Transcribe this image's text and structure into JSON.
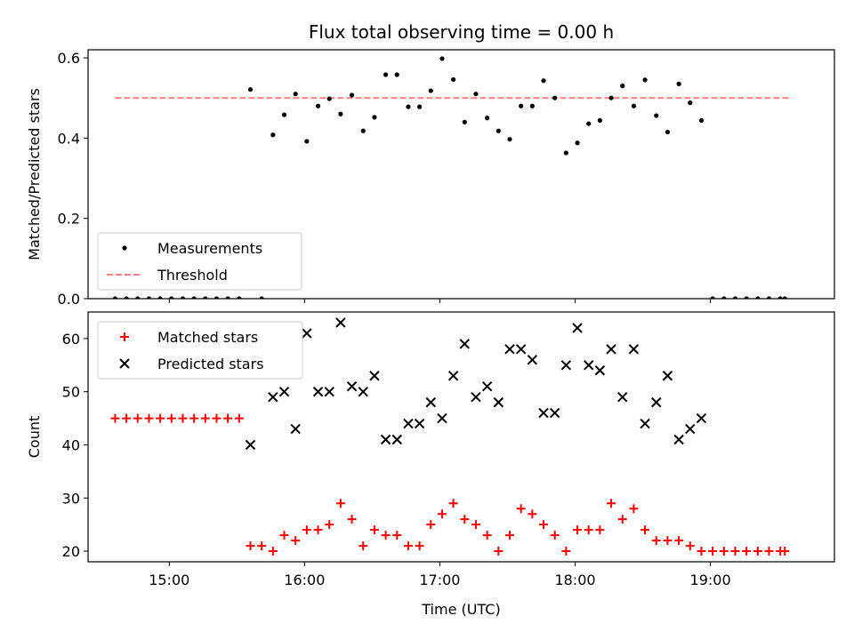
{
  "chart_data": [
    {
      "type": "scatter",
      "title": "Flux total observing time = 0.00 h",
      "xlabel": "",
      "ylabel": "Matched/Predicted stars",
      "xlim": [
        "14:24",
        "19:55"
      ],
      "ylim": [
        0,
        0.62
      ],
      "yticks": [
        0.0,
        0.2,
        0.4,
        0.6
      ],
      "ytick_labels": [
        "0.0",
        "0.2",
        "0.4",
        "0.6"
      ],
      "xticks": [
        "15:00",
        "16:00",
        "17:00",
        "18:00",
        "19:00"
      ],
      "show_xtick_labels": false,
      "grid": false,
      "legend": {
        "placement": "lower-left",
        "entries": [
          "Measurements",
          "Threshold"
        ]
      },
      "threshold": {
        "name": "Threshold",
        "value": 0.5,
        "x_start": "14:36",
        "x_end": "19:36",
        "color": "#ff7f7f",
        "style": "dashed"
      },
      "series": [
        {
          "name": "Measurements",
          "color": "#000000",
          "marker": "dot",
          "points": [
            [
              "14:36",
              0
            ],
            [
              "14:41",
              0
            ],
            [
              "14:46",
              0
            ],
            [
              "14:51",
              0
            ],
            [
              "14:56",
              0
            ],
            [
              "15:01",
              0
            ],
            [
              "15:06",
              0
            ],
            [
              "15:11",
              0
            ],
            [
              "15:16",
              0
            ],
            [
              "15:21",
              0
            ],
            [
              "15:26",
              0
            ],
            [
              "15:31",
              0
            ],
            [
              "15:36",
              0.521
            ],
            [
              "15:41",
              0
            ],
            [
              "15:46",
              0.408
            ],
            [
              "15:51",
              0.458
            ],
            [
              "15:56",
              0.51
            ],
            [
              "16:01",
              0.392
            ],
            [
              "16:06",
              0.48
            ],
            [
              "16:11",
              0.498
            ],
            [
              "16:16",
              0.46
            ],
            [
              "16:21",
              0.507
            ],
            [
              "16:26",
              0.418
            ],
            [
              "16:31",
              0.452
            ],
            [
              "16:36",
              0.558
            ],
            [
              "16:41",
              0.558
            ],
            [
              "16:46",
              0.478
            ],
            [
              "16:51",
              0.478
            ],
            [
              "16:56",
              0.518
            ],
            [
              "17:01",
              0.598
            ],
            [
              "17:06",
              0.546
            ],
            [
              "17:11",
              0.44
            ],
            [
              "17:16",
              0.51
            ],
            [
              "17:21",
              0.45
            ],
            [
              "17:26",
              0.418
            ],
            [
              "17:31",
              0.397
            ],
            [
              "17:36",
              0.48
            ],
            [
              "17:41",
              0.48
            ],
            [
              "17:46",
              0.543
            ],
            [
              "17:51",
              0.5
            ],
            [
              "17:56",
              0.363
            ],
            [
              "18:01",
              0.388
            ],
            [
              "18:06",
              0.436
            ],
            [
              "18:11",
              0.444
            ],
            [
              "18:16",
              0.5
            ],
            [
              "18:21",
              0.53
            ],
            [
              "18:26",
              0.48
            ],
            [
              "18:31",
              0.545
            ],
            [
              "18:36",
              0.456
            ],
            [
              "18:41",
              0.415
            ],
            [
              "18:46",
              0.535
            ],
            [
              "18:51",
              0.488
            ],
            [
              "18:56",
              0.444
            ],
            [
              "19:01",
              0
            ],
            [
              "19:06",
              0
            ],
            [
              "19:11",
              0
            ],
            [
              "19:16",
              0
            ],
            [
              "19:21",
              0
            ],
            [
              "19:26",
              0
            ],
            [
              "19:31",
              0
            ],
            [
              "19:33",
              0
            ]
          ]
        }
      ]
    },
    {
      "type": "scatter",
      "title": "",
      "xlabel": "Time (UTC)",
      "ylabel": "Count",
      "xlim": [
        "14:24",
        "19:55"
      ],
      "ylim": [
        18,
        65
      ],
      "yticks": [
        20,
        30,
        40,
        50,
        60
      ],
      "ytick_labels": [
        "20",
        "30",
        "40",
        "50",
        "60"
      ],
      "xticks": [
        "15:00",
        "16:00",
        "17:00",
        "18:00",
        "19:00"
      ],
      "show_xtick_labels": true,
      "grid": false,
      "legend": {
        "placement": "top-left",
        "entries": [
          "Matched stars",
          "Predicted stars"
        ]
      },
      "series": [
        {
          "name": "Matched stars",
          "color": "#ff0000",
          "marker": "plus",
          "points": [
            [
              "14:36",
              45
            ],
            [
              "14:41",
              45
            ],
            [
              "14:46",
              45
            ],
            [
              "14:51",
              45
            ],
            [
              "14:56",
              45
            ],
            [
              "15:01",
              45
            ],
            [
              "15:06",
              45
            ],
            [
              "15:11",
              45
            ],
            [
              "15:16",
              45
            ],
            [
              "15:21",
              45
            ],
            [
              "15:26",
              45
            ],
            [
              "15:31",
              45
            ],
            [
              "15:36",
              21
            ],
            [
              "15:41",
              21
            ],
            [
              "15:46",
              20
            ],
            [
              "15:51",
              23
            ],
            [
              "15:56",
              22
            ],
            [
              "16:01",
              24
            ],
            [
              "16:06",
              24
            ],
            [
              "16:11",
              25
            ],
            [
              "16:16",
              29
            ],
            [
              "16:21",
              26
            ],
            [
              "16:26",
              21
            ],
            [
              "16:31",
              24
            ],
            [
              "16:36",
              23
            ],
            [
              "16:41",
              23
            ],
            [
              "16:46",
              21
            ],
            [
              "16:51",
              21
            ],
            [
              "16:56",
              25
            ],
            [
              "17:01",
              27
            ],
            [
              "17:06",
              29
            ],
            [
              "17:11",
              26
            ],
            [
              "17:16",
              25
            ],
            [
              "17:21",
              23
            ],
            [
              "17:26",
              20
            ],
            [
              "17:31",
              23
            ],
            [
              "17:36",
              28
            ],
            [
              "17:41",
              27
            ],
            [
              "17:46",
              25
            ],
            [
              "17:51",
              23
            ],
            [
              "17:56",
              20
            ],
            [
              "18:01",
              24
            ],
            [
              "18:06",
              24
            ],
            [
              "18:11",
              24
            ],
            [
              "18:16",
              29
            ],
            [
              "18:21",
              26
            ],
            [
              "18:26",
              28
            ],
            [
              "18:31",
              24
            ],
            [
              "18:36",
              22
            ],
            [
              "18:41",
              22
            ],
            [
              "18:46",
              22
            ],
            [
              "18:51",
              21
            ],
            [
              "18:56",
              20
            ],
            [
              "19:01",
              20
            ],
            [
              "19:06",
              20
            ],
            [
              "19:11",
              20
            ],
            [
              "19:16",
              20
            ],
            [
              "19:21",
              20
            ],
            [
              "19:26",
              20
            ],
            [
              "19:31",
              20
            ],
            [
              "19:33",
              20
            ]
          ]
        },
        {
          "name": "Predicted stars",
          "color": "#000000",
          "marker": "cross",
          "points": [
            [
              "15:36",
              40
            ],
            [
              "15:46",
              49
            ],
            [
              "15:51",
              50
            ],
            [
              "15:56",
              43
            ],
            [
              "16:01",
              61
            ],
            [
              "16:06",
              50
            ],
            [
              "16:11",
              50
            ],
            [
              "16:16",
              63
            ],
            [
              "16:21",
              51
            ],
            [
              "16:26",
              50
            ],
            [
              "16:31",
              53
            ],
            [
              "16:36",
              41
            ],
            [
              "16:41",
              41
            ],
            [
              "16:46",
              44
            ],
            [
              "16:51",
              44
            ],
            [
              "16:56",
              48
            ],
            [
              "17:01",
              45
            ],
            [
              "17:06",
              53
            ],
            [
              "17:11",
              59
            ],
            [
              "17:16",
              49
            ],
            [
              "17:21",
              51
            ],
            [
              "17:26",
              48
            ],
            [
              "17:31",
              58
            ],
            [
              "17:36",
              58
            ],
            [
              "17:41",
              56
            ],
            [
              "17:46",
              46
            ],
            [
              "17:51",
              46
            ],
            [
              "17:56",
              55
            ],
            [
              "18:01",
              62
            ],
            [
              "18:06",
              55
            ],
            [
              "18:11",
              54
            ],
            [
              "18:16",
              58
            ],
            [
              "18:21",
              49
            ],
            [
              "18:26",
              58
            ],
            [
              "18:31",
              44
            ],
            [
              "18:36",
              48
            ],
            [
              "18:41",
              53
            ],
            [
              "18:46",
              41
            ],
            [
              "18:51",
              43
            ],
            [
              "18:56",
              45
            ]
          ]
        }
      ]
    }
  ]
}
